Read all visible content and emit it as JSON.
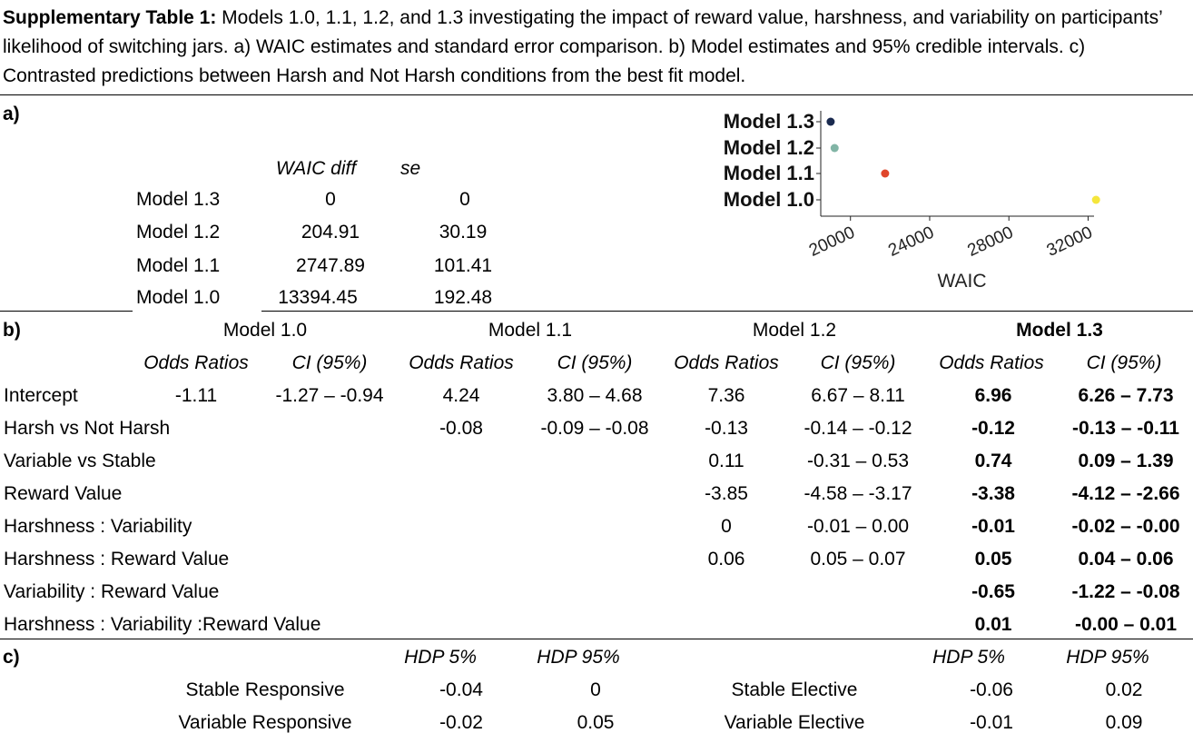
{
  "caption": {
    "title_bold": "Supplementary Table 1:",
    "text": " Models 1.0, 1.1, 1.2, and 1.3 investigating the impact of reward value, harshness, and variability on participants’  likelihood of switching jars. a) WAIC estimates and standard error comparison. b) Model estimates and 95% credible intervals. c) Contrasted predictions between Harsh and Not Harsh conditions from the best fit model."
  },
  "section_a": {
    "label": "a)",
    "headers": [
      "WAIC diff",
      "se"
    ],
    "rows": [
      {
        "model": "Model 1.3",
        "waic_diff": "0",
        "se": "0"
      },
      {
        "model": "Model 1.2",
        "waic_diff": "204.91",
        "se": "30.19"
      },
      {
        "model": "Model 1.1",
        "waic_diff": "2747.89",
        "se": "101.41"
      },
      {
        "model": "Model 1.0",
        "waic_diff": "13394.45",
        "se": "192.48"
      }
    ]
  },
  "chart_data": {
    "type": "scatter",
    "xlabel": "WAIC",
    "ylabel": "",
    "categories": [
      "Model 1.3",
      "Model 1.2",
      "Model 1.1",
      "Model 1.0"
    ],
    "x_ticks": [
      "20000",
      "24000",
      "28000",
      "32000"
    ],
    "xlim": [
      18500,
      32300
    ],
    "points": [
      {
        "model": "Model 1.3",
        "x": 19000,
        "color": "#1a2a4f"
      },
      {
        "model": "Model 1.2",
        "x": 19200,
        "color": "#82b5a6"
      },
      {
        "model": "Model 1.1",
        "x": 21750,
        "color": "#e0462b"
      },
      {
        "model": "Model 1.0",
        "x": 32400,
        "color": "#f5e63c"
      }
    ]
  },
  "section_b": {
    "label": "b)",
    "models": [
      "Model 1.0",
      "Model 1.1",
      "Model 1.2",
      "Model 1.3"
    ],
    "subheaders": [
      "Odds Ratios",
      "CI (95%)"
    ],
    "rows": [
      {
        "term": "Intercept",
        "m10_or": "-1.11",
        "m10_ci": "-1.27 – -0.94",
        "m11_or": "4.24",
        "m11_ci": "3.80 – 4.68",
        "m12_or": "7.36",
        "m12_ci": "6.67 – 8.11",
        "m13_or": "6.96",
        "m13_ci": "6.26 – 7.73"
      },
      {
        "term": "Harsh vs Not Harsh",
        "m10_or": "",
        "m10_ci": "",
        "m11_or": "-0.08",
        "m11_ci": "-0.09 – -0.08",
        "m12_or": "-0.13",
        "m12_ci": "-0.14 – -0.12",
        "m13_or": "-0.12",
        "m13_ci": "-0.13 – -0.11"
      },
      {
        "term": "Variable vs Stable",
        "m10_or": "",
        "m10_ci": "",
        "m11_or": "",
        "m11_ci": "",
        "m12_or": "0.11",
        "m12_ci": "-0.31 – 0.53",
        "m13_or": "0.74",
        "m13_ci": "0.09 – 1.39"
      },
      {
        "term": "Reward Value",
        "m10_or": "",
        "m10_ci": "",
        "m11_or": "",
        "m11_ci": "",
        "m12_or": "-3.85",
        "m12_ci": "-4.58 – -3.17",
        "m13_or": "-3.38",
        "m13_ci": "-4.12 – -2.66"
      },
      {
        "term": "Harshness : Variability",
        "m10_or": "",
        "m10_ci": "",
        "m11_or": "",
        "m11_ci": "",
        "m12_or": "0",
        "m12_ci": "-0.01 – 0.00",
        "m13_or": "-0.01",
        "m13_ci": "-0.02 – -0.00"
      },
      {
        "term": "Harshness : Reward Value",
        "m10_or": "",
        "m10_ci": "",
        "m11_or": "",
        "m11_ci": "",
        "m12_or": "0.06",
        "m12_ci": "0.05 – 0.07",
        "m13_or": "0.05",
        "m13_ci": "0.04 – 0.06"
      },
      {
        "term": "Variability : Reward Value",
        "m10_or": "",
        "m10_ci": "",
        "m11_or": "",
        "m11_ci": "",
        "m12_or": "",
        "m12_ci": "",
        "m13_or": "-0.65",
        "m13_ci": "-1.22 – -0.08"
      },
      {
        "term": "Harshness : Variability :Reward Value",
        "m10_or": "",
        "m10_ci": "",
        "m11_or": "",
        "m11_ci": "",
        "m12_or": "",
        "m12_ci": "",
        "m13_or": "0.01",
        "m13_ci": "-0.00 – 0.01"
      }
    ]
  },
  "section_c": {
    "label": "c)",
    "headers": [
      "HDP 5%",
      "HDP 95%"
    ],
    "left": [
      {
        "condition": "Stable Responsive",
        "hdp5": "-0.04",
        "hdp95": "0"
      },
      {
        "condition": "Variable Responsive",
        "hdp5": "-0.02",
        "hdp95": "0.05"
      }
    ],
    "right": [
      {
        "condition": "Stable Elective",
        "hdp5": "-0.06",
        "hdp95": "0.02"
      },
      {
        "condition": "Variable Elective",
        "hdp5": "-0.01",
        "hdp95": "0.09"
      }
    ]
  }
}
